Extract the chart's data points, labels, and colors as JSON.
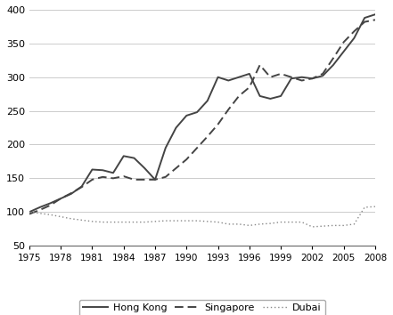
{
  "years": [
    1975,
    1976,
    1977,
    1978,
    1979,
    1980,
    1981,
    1982,
    1983,
    1984,
    1985,
    1986,
    1987,
    1988,
    1989,
    1990,
    1991,
    1992,
    1993,
    1994,
    1995,
    1996,
    1997,
    1998,
    1999,
    2000,
    2001,
    2002,
    2003,
    2004,
    2005,
    2006,
    2007,
    2008
  ],
  "hong_kong": [
    100,
    107,
    113,
    120,
    127,
    138,
    163,
    162,
    158,
    183,
    180,
    165,
    148,
    195,
    225,
    243,
    248,
    265,
    300,
    295,
    300,
    305,
    272,
    268,
    272,
    298,
    300,
    298,
    302,
    318,
    338,
    358,
    388,
    393
  ],
  "singapore": [
    97,
    103,
    110,
    120,
    128,
    137,
    148,
    152,
    150,
    153,
    148,
    148,
    148,
    152,
    165,
    178,
    195,
    212,
    230,
    252,
    272,
    285,
    318,
    300,
    305,
    300,
    295,
    298,
    305,
    328,
    352,
    368,
    382,
    385
  ],
  "dubai": [
    100,
    98,
    96,
    93,
    90,
    88,
    86,
    85,
    85,
    85,
    85,
    85,
    86,
    87,
    87,
    87,
    87,
    86,
    85,
    82,
    82,
    80,
    82,
    83,
    85,
    85,
    85,
    78,
    79,
    80,
    80,
    82,
    107,
    108
  ],
  "ylim": [
    50,
    400
  ],
  "xlim": [
    1975,
    2008
  ],
  "yticks": [
    50,
    100,
    150,
    200,
    250,
    300,
    350,
    400
  ],
  "xticks": [
    1975,
    1978,
    1981,
    1984,
    1987,
    1990,
    1993,
    1996,
    1999,
    2002,
    2005,
    2008
  ],
  "hk_color": "#444444",
  "sg_color": "#444444",
  "du_color": "#888888",
  "background_color": "#ffffff",
  "grid_color": "#cccccc",
  "legend_labels": [
    "Hong Kong",
    "Singapore",
    "Dubai"
  ]
}
